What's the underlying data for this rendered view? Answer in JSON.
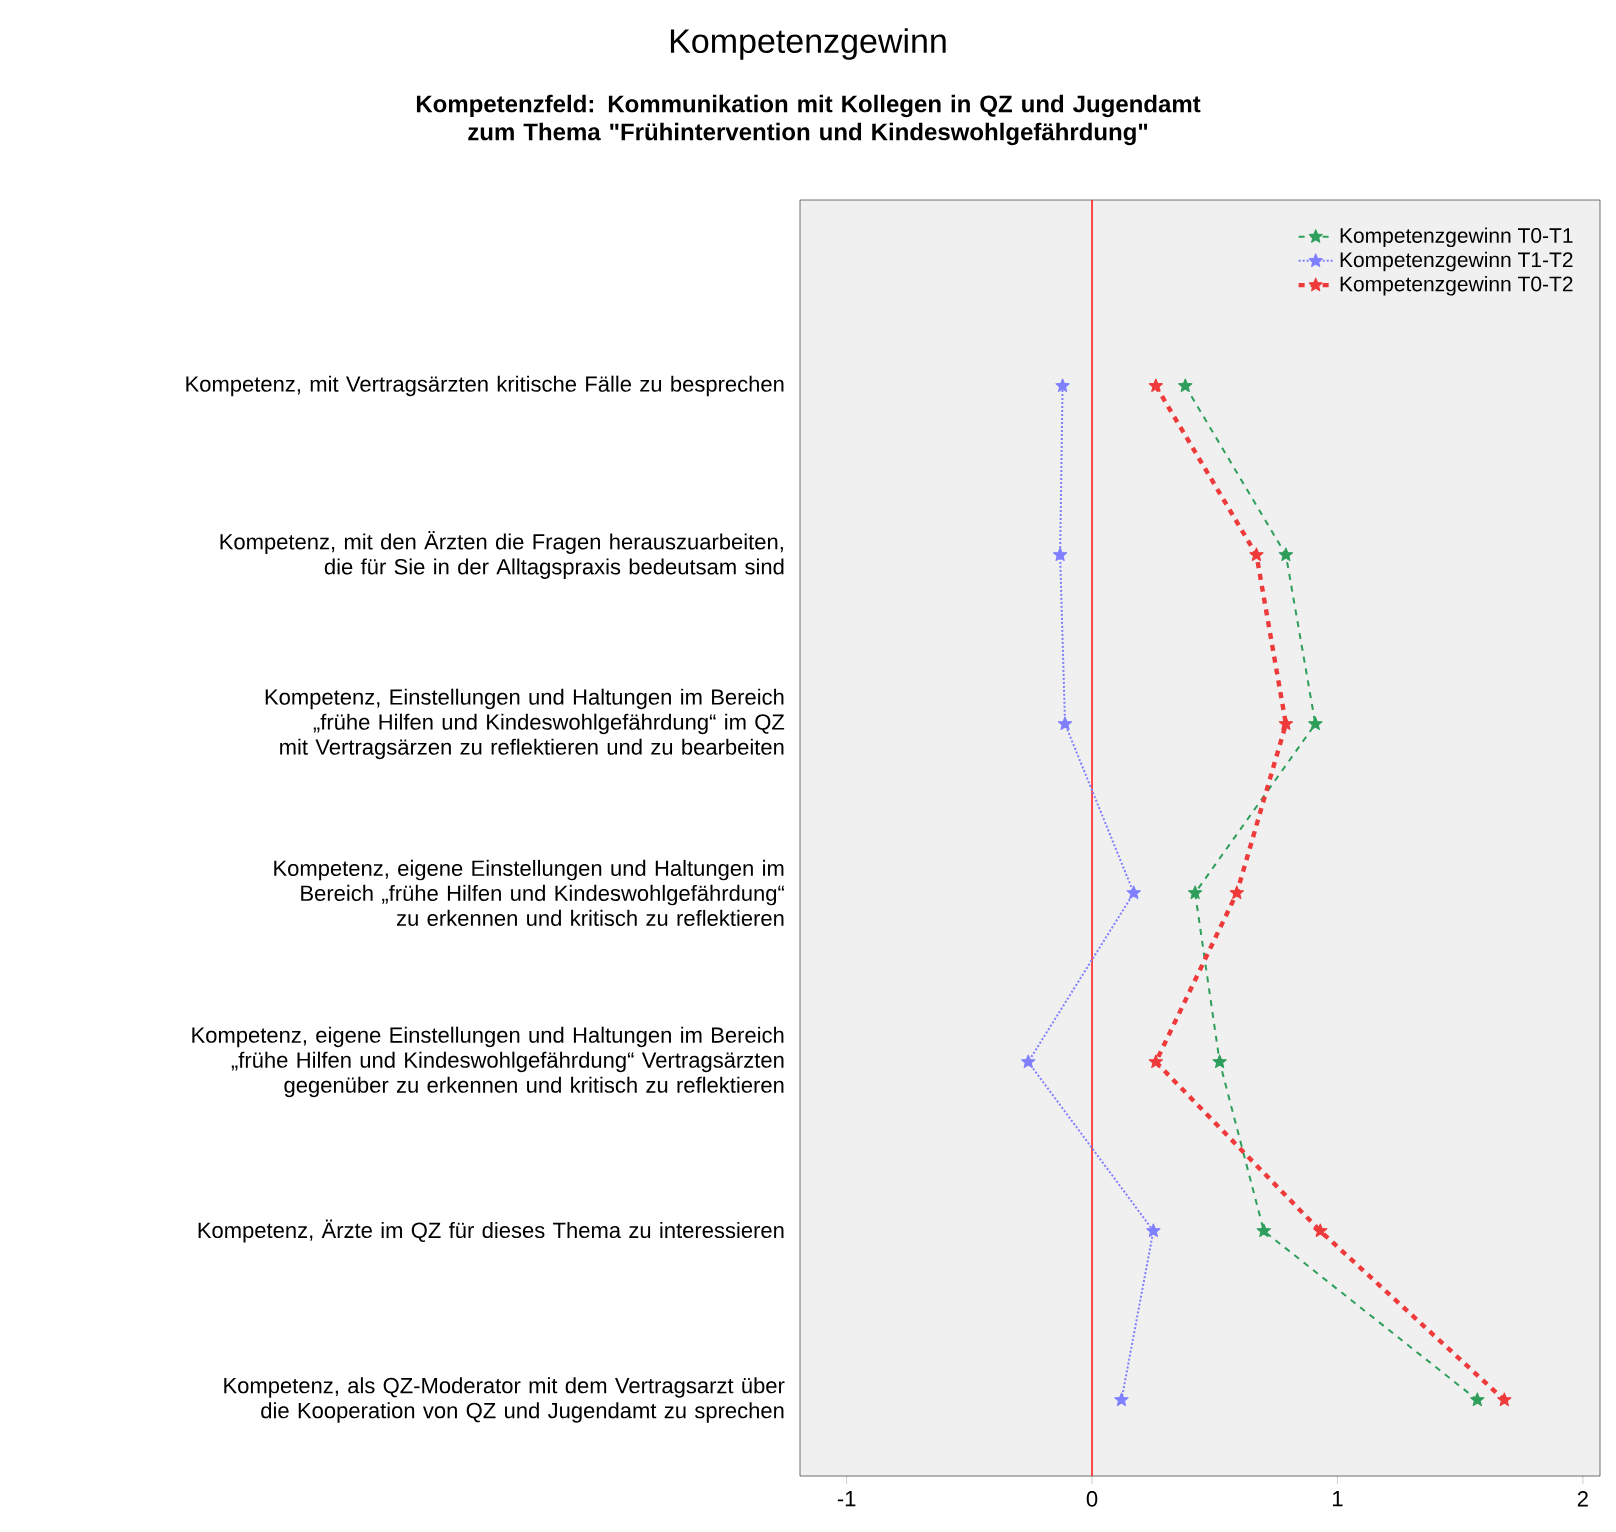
{
  "chart_data": {
    "type": "line",
    "orientation": "horizontal",
    "title": "Kompetenzgewinn",
    "subtitle": "Kompetenzfeld: Kommunikation mit Kollegen in QZ und Jugendamt zum  Thema \"Frühintervention und Kindeswohlgefährdung\"",
    "categories": [
      "Kompetenz, mit Vertragsärzten kritische Fälle zu besprechen",
      "Kompetenz, mit den Ärzten die Fragen herauszuarbeiten, die für Sie in der Alltagspraxis bedeutsam sind",
      "Kompetenz, Einstellungen und Haltungen im Bereich „frühe Hilfen und Kindeswohlgefährdung“ im QZ mit Vertragsärzen zu reflektieren und zu bearbeiten",
      "Kompetenz, eigene Einstellungen und Haltungen im Bereich „frühe Hilfen und Kindeswohlgefährdung“ zu erkennen und kritisch zu reflektieren",
      "Kompetenz, eigene Einstellungen und Haltungen im Bereich „frühe Hilfen und Kindeswohlgefährdung“ Vertragsärzten gegenüber zu erkennen und kritisch zu reflektieren",
      "Kompetenz, Ärzte im QZ für dieses Thema zu interessieren",
      "Kompetenz, als QZ-Moderator mit dem Vertragsarzt über die Kooperation von QZ und Jugendamt zu sprechen"
    ],
    "series": [
      {
        "name": "Kompetenzgewinn T0-T1",
        "color": "#2e9e5b",
        "line_style": "dashed",
        "values": [
          0.38,
          0.79,
          0.91,
          0.42,
          0.52,
          0.7,
          1.57
        ]
      },
      {
        "name": "Kompetenzgewinn T1-T2",
        "color": "#7f7fff",
        "line_style": "dotted",
        "values": [
          -0.12,
          -0.13,
          -0.11,
          0.17,
          -0.26,
          0.25,
          0.12
        ]
      },
      {
        "name": "Kompetenzgewinn T0-T2",
        "color": "#ee3a3a",
        "line_style": "dashed",
        "values": [
          0.26,
          0.67,
          0.79,
          0.59,
          0.26,
          0.93,
          1.68
        ]
      }
    ],
    "marker": "star",
    "xlim": [
      -1.19,
      2.07
    ],
    "xticks": [
      -1,
      0,
      1,
      2
    ],
    "ref_lines": [
      {
        "axis": "x",
        "value": 0,
        "color": "#ff2020"
      }
    ],
    "legend": "top right"
  }
}
